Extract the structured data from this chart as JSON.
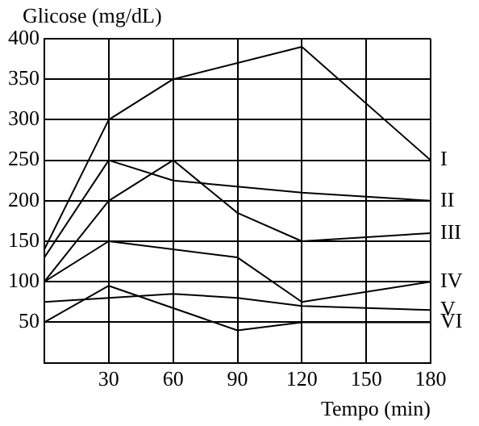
{
  "chart_data": {
    "type": "line",
    "ylabel": "Glicose (mg/dL)",
    "xlabel": "Tempo (min)",
    "xlim": [
      0,
      180
    ],
    "xticks": [
      {
        "value": 0,
        "label": null
      },
      30,
      60,
      90,
      120,
      150,
      180
    ],
    "ylim": [
      0,
      400
    ],
    "yticks": [
      {
        "value": 0,
        "label": null
      },
      50,
      100,
      150,
      200,
      250,
      300,
      350,
      400
    ],
    "grid": true,
    "legend": false,
    "marker": "none",
    "line_style": "solid",
    "series": [
      {
        "name": "I",
        "color": "#000000",
        "x": [
          0,
          30,
          60,
          120,
          180
        ],
        "values": [
          140,
          300,
          350,
          390,
          250
        ]
      },
      {
        "name": "II",
        "color": "#000000",
        "x": [
          0,
          30,
          60,
          120,
          180
        ],
        "values": [
          130,
          250,
          225,
          210,
          200
        ]
      },
      {
        "name": "III",
        "color": "#000000",
        "x": [
          0,
          30,
          60,
          90,
          120,
          180
        ],
        "values": [
          100,
          200,
          250,
          185,
          150,
          160
        ]
      },
      {
        "name": "IV",
        "color": "#000000",
        "x": [
          0,
          30,
          90,
          120,
          180
        ],
        "values": [
          100,
          150,
          130,
          75,
          100
        ]
      },
      {
        "name": "V",
        "color": "#000000",
        "x": [
          0,
          30,
          60,
          90,
          120,
          180
        ],
        "values": [
          75,
          80,
          85,
          80,
          70,
          65
        ]
      },
      {
        "name": "VI",
        "color": "#000000",
        "x": [
          0,
          30,
          90,
          120,
          180
        ],
        "values": [
          50,
          95,
          40,
          50,
          50
        ]
      }
    ]
  }
}
